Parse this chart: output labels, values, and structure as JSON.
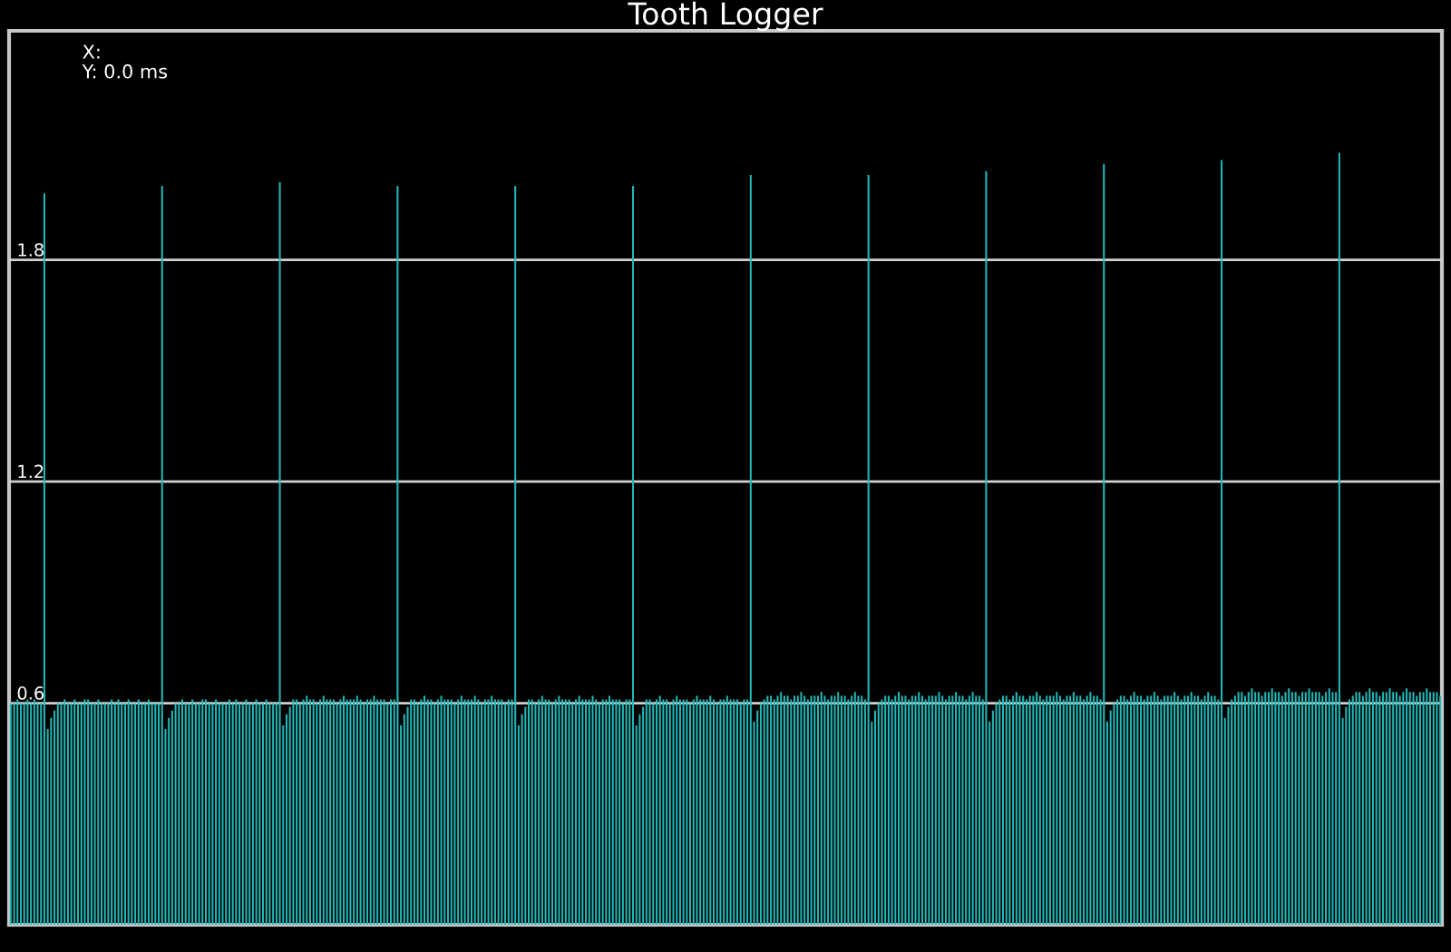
{
  "chart_data": {
    "type": "bar",
    "title": "Tooth Logger",
    "annotations": [
      "X:",
      "Y: 0.0 ms"
    ],
    "categories": [
      null,
      null,
      null,
      null,
      null,
      null,
      null,
      null,
      null,
      null,
      null,
      null,
      null,
      null,
      null,
      null,
      null,
      null,
      null,
      null,
      null,
      null,
      null,
      null,
      null,
      null,
      null,
      null,
      null,
      null,
      null,
      null,
      null,
      null,
      null,
      null,
      null,
      null,
      null,
      null,
      null,
      null,
      null,
      null,
      null,
      null,
      null,
      null,
      null,
      null,
      null,
      null,
      null,
      null,
      null,
      null,
      null,
      null,
      null,
      null,
      null,
      null,
      null,
      null,
      null,
      null,
      null,
      null,
      null,
      null,
      null,
      null,
      null,
      null,
      null,
      null,
      null,
      null,
      null,
      null,
      null,
      null,
      null,
      null,
      null,
      null,
      null,
      null,
      null,
      null,
      null,
      null,
      null,
      null,
      null,
      null,
      null,
      null,
      null,
      null,
      null,
      null,
      null,
      null,
      null,
      null,
      null,
      null,
      null,
      null,
      null,
      null,
      null,
      null,
      null,
      null,
      null,
      null,
      null,
      null,
      null,
      null,
      null,
      null,
      null,
      null,
      null,
      null,
      null,
      null,
      null,
      null,
      null,
      null,
      null,
      null,
      null,
      null,
      null,
      null,
      null,
      null,
      null,
      null,
      null,
      null,
      null,
      null,
      null,
      null,
      null,
      null,
      null,
      null,
      null,
      null,
      null,
      null,
      null,
      null,
      null,
      null,
      null,
      null,
      null,
      null,
      null,
      null,
      null,
      null,
      null,
      null,
      null,
      null,
      null,
      null,
      null,
      null,
      null,
      null,
      null,
      null,
      null,
      null,
      null,
      null,
      null,
      null,
      null,
      null,
      null,
      null,
      null,
      null,
      null,
      null,
      null,
      null,
      null,
      null,
      null,
      null,
      null,
      null,
      null,
      null,
      null,
      null,
      null,
      null,
      null,
      null,
      null,
      null,
      null,
      null,
      null,
      null,
      null,
      null,
      null,
      null,
      null,
      null,
      null,
      null,
      null,
      null,
      null,
      null,
      null,
      null,
      null,
      null,
      null,
      null,
      null,
      null,
      null,
      null,
      null,
      null,
      null,
      null,
      null,
      null,
      null,
      null,
      null,
      null,
      null,
      null,
      null,
      null,
      null,
      null,
      null,
      null,
      null,
      null,
      null,
      null,
      null,
      null,
      null,
      null,
      null,
      null,
      null,
      null,
      null,
      null,
      null,
      null,
      null,
      null,
      null,
      null,
      null,
      null,
      null,
      null,
      null,
      null,
      null,
      null,
      null,
      null,
      null,
      null,
      null,
      null,
      null,
      null,
      null,
      null,
      null,
      null,
      null,
      null,
      null,
      null,
      null,
      null,
      null,
      null,
      null,
      null,
      null,
      null,
      null,
      null,
      null,
      null,
      null,
      null,
      null,
      null,
      null,
      null,
      null,
      null,
      null,
      null,
      null,
      null,
      null,
      null,
      null,
      null,
      null,
      null,
      null,
      null,
      null,
      null,
      null,
      null,
      null,
      null,
      null,
      null,
      null,
      null,
      null,
      null,
      null,
      null,
      null,
      null,
      null,
      null,
      null,
      null,
      null,
      null,
      null,
      null,
      null,
      null,
      null,
      null,
      null,
      null,
      null,
      null,
      null,
      null,
      null,
      null,
      null,
      null,
      null,
      null,
      null,
      null,
      null,
      null,
      null,
      null,
      null,
      null,
      null,
      null,
      null,
      null,
      null,
      null,
      null,
      null,
      null,
      null,
      null,
      null,
      null,
      null,
      null,
      null,
      null,
      null,
      null,
      null,
      null,
      null,
      null,
      null,
      null,
      null,
      null,
      null,
      null,
      null,
      null,
      null,
      null,
      null,
      null,
      null,
      null,
      null,
      null,
      null,
      null,
      null,
      null,
      null
    ],
    "values": [
      0.6,
      0.6,
      0.61,
      0.6,
      0.6,
      0.61,
      0.6,
      0.61,
      0.6,
      0.6,
      1.98,
      0.53,
      0.56,
      0.58,
      0.6,
      0.6,
      0.61,
      0.6,
      0.6,
      0.61,
      0.6,
      0.6,
      0.61,
      0.61,
      0.6,
      0.6,
      0.61,
      0.6,
      0.6,
      0.6,
      0.61,
      0.6,
      0.61,
      0.6,
      0.6,
      0.61,
      0.6,
      0.6,
      0.61,
      0.6,
      0.6,
      0.61,
      0.6,
      0.6,
      0.6,
      2.0,
      0.53,
      0.56,
      0.58,
      0.6,
      0.6,
      0.61,
      0.6,
      0.6,
      0.61,
      0.6,
      0.6,
      0.61,
      0.61,
      0.6,
      0.6,
      0.61,
      0.6,
      0.6,
      0.6,
      0.61,
      0.6,
      0.61,
      0.6,
      0.6,
      0.61,
      0.6,
      0.6,
      0.61,
      0.6,
      0.6,
      0.61,
      0.6,
      0.6,
      0.6,
      2.01,
      0.54,
      0.57,
      0.59,
      0.61,
      0.61,
      0.6,
      0.61,
      0.62,
      0.61,
      0.61,
      0.6,
      0.61,
      0.62,
      0.61,
      0.61,
      0.61,
      0.6,
      0.61,
      0.62,
      0.61,
      0.61,
      0.61,
      0.62,
      0.61,
      0.6,
      0.61,
      0.61,
      0.62,
      0.61,
      0.61,
      0.61,
      0.6,
      0.61,
      0.61,
      2.0,
      0.54,
      0.57,
      0.59,
      0.61,
      0.61,
      0.6,
      0.61,
      0.62,
      0.61,
      0.61,
      0.6,
      0.61,
      0.62,
      0.61,
      0.61,
      0.61,
      0.6,
      0.61,
      0.62,
      0.61,
      0.61,
      0.61,
      0.62,
      0.61,
      0.6,
      0.61,
      0.61,
      0.62,
      0.61,
      0.61,
      0.61,
      0.6,
      0.61,
      0.61,
      2.0,
      0.54,
      0.57,
      0.59,
      0.61,
      0.61,
      0.6,
      0.61,
      0.62,
      0.61,
      0.61,
      0.6,
      0.61,
      0.62,
      0.61,
      0.61,
      0.61,
      0.6,
      0.61,
      0.62,
      0.61,
      0.61,
      0.61,
      0.62,
      0.61,
      0.6,
      0.61,
      0.61,
      0.62,
      0.61,
      0.61,
      0.61,
      0.6,
      0.61,
      0.61,
      2.0,
      0.54,
      0.57,
      0.59,
      0.61,
      0.61,
      0.6,
      0.61,
      0.62,
      0.61,
      0.61,
      0.6,
      0.61,
      0.62,
      0.61,
      0.61,
      0.61,
      0.6,
      0.61,
      0.62,
      0.61,
      0.61,
      0.61,
      0.62,
      0.61,
      0.6,
      0.61,
      0.61,
      0.62,
      0.61,
      0.61,
      0.61,
      0.6,
      0.61,
      0.61,
      2.03,
      0.55,
      0.58,
      0.6,
      0.61,
      0.62,
      0.62,
      0.61,
      0.62,
      0.63,
      0.62,
      0.62,
      0.61,
      0.62,
      0.62,
      0.63,
      0.62,
      0.61,
      0.62,
      0.62,
      0.62,
      0.63,
      0.62,
      0.61,
      0.62,
      0.62,
      0.63,
      0.62,
      0.62,
      0.61,
      0.62,
      0.63,
      0.62,
      0.62,
      0.61,
      2.03,
      0.55,
      0.58,
      0.6,
      0.61,
      0.62,
      0.62,
      0.61,
      0.62,
      0.63,
      0.62,
      0.62,
      0.61,
      0.62,
      0.62,
      0.63,
      0.62,
      0.61,
      0.62,
      0.62,
      0.62,
      0.63,
      0.62,
      0.61,
      0.62,
      0.62,
      0.63,
      0.62,
      0.62,
      0.61,
      0.62,
      0.63,
      0.62,
      0.62,
      0.61,
      2.04,
      0.55,
      0.58,
      0.6,
      0.61,
      0.62,
      0.62,
      0.61,
      0.62,
      0.63,
      0.62,
      0.62,
      0.61,
      0.62,
      0.62,
      0.63,
      0.62,
      0.61,
      0.62,
      0.62,
      0.62,
      0.63,
      0.62,
      0.61,
      0.62,
      0.62,
      0.63,
      0.62,
      0.62,
      0.61,
      0.62,
      0.63,
      0.62,
      0.62,
      0.61,
      2.06,
      0.55,
      0.58,
      0.6,
      0.61,
      0.62,
      0.62,
      0.61,
      0.62,
      0.63,
      0.62,
      0.62,
      0.61,
      0.62,
      0.62,
      0.63,
      0.62,
      0.61,
      0.62,
      0.62,
      0.62,
      0.63,
      0.62,
      0.61,
      0.62,
      0.62,
      0.63,
      0.62,
      0.62,
      0.61,
      0.62,
      0.63,
      0.62,
      0.62,
      0.61,
      2.07,
      0.56,
      0.59,
      0.61,
      0.62,
      0.63,
      0.63,
      0.62,
      0.63,
      0.64,
      0.63,
      0.63,
      0.62,
      0.63,
      0.63,
      0.64,
      0.63,
      0.63,
      0.62,
      0.63,
      0.64,
      0.63,
      0.63,
      0.62,
      0.63,
      0.63,
      0.64,
      0.63,
      0.63,
      0.63,
      0.62,
      0.63,
      0.64,
      0.63,
      0.63,
      2.09,
      0.56,
      0.59,
      0.61,
      0.62,
      0.63,
      0.63,
      0.62,
      0.63,
      0.64,
      0.63,
      0.63,
      0.62,
      0.63,
      0.63,
      0.64,
      0.63,
      0.63,
      0.62,
      0.63,
      0.64,
      0.63,
      0.63,
      0.62,
      0.63,
      0.63,
      0.64,
      0.63,
      0.63,
      0.63,
      0.62
    ],
    "color": "#22b8b8",
    "ylim": [
      0,
      2.42
    ],
    "yticks": [
      0.6,
      1.2,
      1.8
    ],
    "grid": "y",
    "tick_labels": "y"
  }
}
